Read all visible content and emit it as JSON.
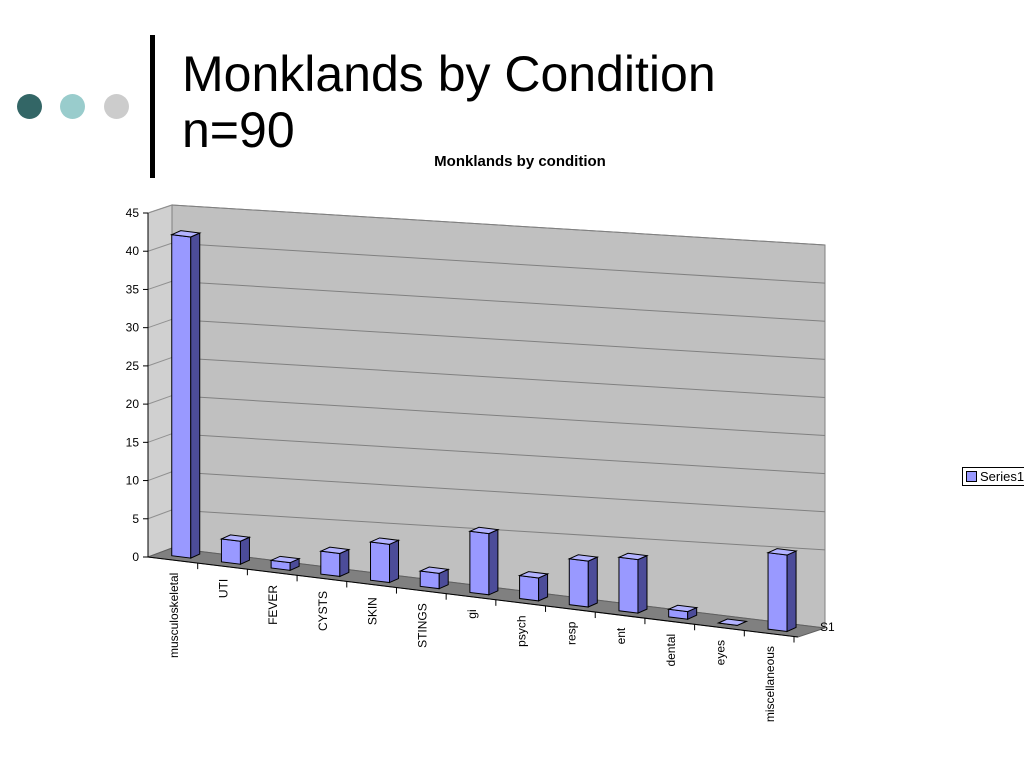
{
  "slide": {
    "title_line1": "Monklands by Condition",
    "title_line2": "n=90",
    "dots": [
      "#336666",
      "#99cccc",
      "#cccccc"
    ]
  },
  "chart_data": {
    "type": "bar",
    "title": "Monklands by condition",
    "categories": [
      "musculoskeletal",
      "UTI",
      "FEVER",
      "CYSTS",
      "SKIN",
      "STINGS",
      "gi",
      "psych",
      "resp",
      "ent",
      "dental",
      "eyes",
      "miscellaneous"
    ],
    "series": [
      {
        "name": "Series1",
        "values": [
          42,
          3,
          1,
          3,
          5,
          2,
          8,
          3,
          6,
          7,
          1,
          0,
          10
        ]
      }
    ],
    "ylim": [
      0,
      45
    ],
    "yticks": [
      0,
      5,
      10,
      15,
      20,
      25,
      30,
      35,
      40,
      45
    ],
    "depth_label": "S1",
    "legend": {
      "label": "Series1",
      "position": "right"
    },
    "grid": true,
    "colors": {
      "bar_front": "#9999ff",
      "bar_side": "#4c4c99",
      "bar_top": "#b3b3ff",
      "wall": "#c0c0c0",
      "floor": "#808080"
    }
  }
}
